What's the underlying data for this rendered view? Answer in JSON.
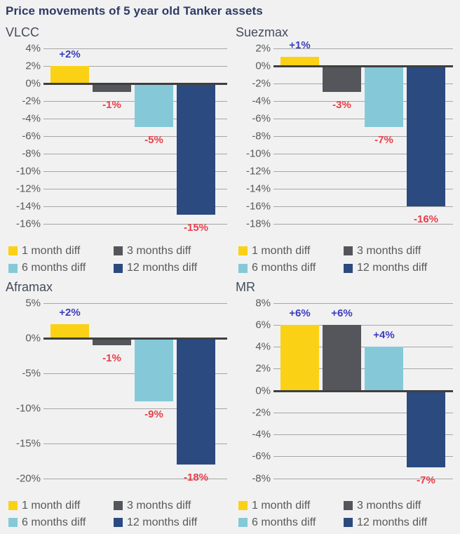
{
  "page": {
    "title": "Price movements of 5 year old Tanker assets",
    "background": "#f1f1f2"
  },
  "colors": {
    "series": {
      "m1": "#fbd116",
      "m3": "#54565b",
      "m6": "#85c9d8",
      "m12": "#2b4a7f"
    },
    "positive_label": "#3c3cc0",
    "negative_label": "#e83f48",
    "gridline": "#a6a6a6",
    "zero_line": "#3f3f3f",
    "tick_text": "#595959",
    "title_text": "#2e3a63",
    "heading_text": "#454c5c",
    "legend_text": "#595959"
  },
  "legend": {
    "items": [
      {
        "key": "m1",
        "label": "1 month diff"
      },
      {
        "key": "m3",
        "label": "3 months diff"
      },
      {
        "key": "m6",
        "label": "6 months diff"
      },
      {
        "key": "m12",
        "label": "12 months diff"
      }
    ]
  },
  "chart_data": [
    {
      "type": "bar",
      "title": "VLCC",
      "categories": [
        "1 month diff",
        "3 months diff",
        "6 months diff",
        "12 months diff"
      ],
      "values": [
        2,
        -1,
        -5,
        -15
      ],
      "labels": [
        "+2%",
        "-1%",
        "-5%",
        "-15%"
      ],
      "ylabel": "",
      "xlabel": "",
      "ylim": [
        -16,
        4
      ],
      "tick_step": 2,
      "grid": true,
      "legend_position": "bottom"
    },
    {
      "type": "bar",
      "title": "Suezmax",
      "categories": [
        "1 month diff",
        "3 months diff",
        "6 months diff",
        "12 months diff"
      ],
      "values": [
        1,
        -3,
        -7,
        -16
      ],
      "labels": [
        "+1%",
        "-3%",
        "-7%",
        "-16%"
      ],
      "ylabel": "",
      "xlabel": "",
      "ylim": [
        -18,
        2
      ],
      "tick_step": 2,
      "grid": true,
      "legend_position": "bottom"
    },
    {
      "type": "bar",
      "title": "Aframax",
      "categories": [
        "1 month diff",
        "3 months diff",
        "6 months diff",
        "12 months diff"
      ],
      "values": [
        2,
        -1,
        -9,
        -18
      ],
      "labels": [
        "+2%",
        "-1%",
        "-9%",
        "-18%"
      ],
      "ylabel": "",
      "xlabel": "",
      "ylim": [
        -20,
        5
      ],
      "tick_step": 5,
      "grid": true,
      "legend_position": "bottom"
    },
    {
      "type": "bar",
      "title": "MR",
      "categories": [
        "1 month diff",
        "3 months diff",
        "6 months diff",
        "12 months diff"
      ],
      "values": [
        6,
        6,
        4,
        -7
      ],
      "labels": [
        "+6%",
        "+6%",
        "+4%",
        "-7%"
      ],
      "ylabel": "",
      "xlabel": "",
      "ylim": [
        -8,
        8
      ],
      "tick_step": 2,
      "grid": true,
      "legend_position": "bottom"
    }
  ]
}
